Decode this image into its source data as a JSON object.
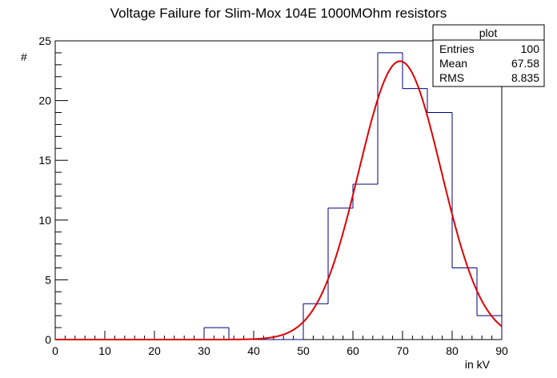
{
  "chart_data": {
    "type": "histogram",
    "title": "Voltage Failure for Slim-Mox 104E 1000MOhm resistors",
    "xlabel": "in kV",
    "ylabel": "#",
    "xlim": [
      0,
      90
    ],
    "ylim": [
      0,
      25
    ],
    "xticks": [
      0,
      10,
      20,
      30,
      40,
      50,
      60,
      70,
      80,
      90
    ],
    "yticks": [
      0,
      5,
      10,
      15,
      20,
      25
    ],
    "bin_width": 5,
    "bins": [
      {
        "x_low": 0,
        "x_high": 5,
        "count": 0
      },
      {
        "x_low": 5,
        "x_high": 10,
        "count": 0
      },
      {
        "x_low": 10,
        "x_high": 15,
        "count": 0
      },
      {
        "x_low": 15,
        "x_high": 20,
        "count": 0
      },
      {
        "x_low": 20,
        "x_high": 25,
        "count": 0
      },
      {
        "x_low": 25,
        "x_high": 30,
        "count": 0
      },
      {
        "x_low": 30,
        "x_high": 35,
        "count": 1
      },
      {
        "x_low": 35,
        "x_high": 40,
        "count": 0
      },
      {
        "x_low": 40,
        "x_high": 45,
        "count": 0
      },
      {
        "x_low": 45,
        "x_high": 50,
        "count": 0
      },
      {
        "x_low": 50,
        "x_high": 55,
        "count": 3
      },
      {
        "x_low": 55,
        "x_high": 60,
        "count": 11
      },
      {
        "x_low": 60,
        "x_high": 65,
        "count": 13
      },
      {
        "x_low": 65,
        "x_high": 70,
        "count": 24
      },
      {
        "x_low": 70,
        "x_high": 75,
        "count": 21
      },
      {
        "x_low": 75,
        "x_high": 80,
        "count": 19
      },
      {
        "x_low": 80,
        "x_high": 85,
        "count": 6
      },
      {
        "x_low": 85,
        "x_high": 90,
        "count": 2
      }
    ],
    "fit": {
      "type": "gaussian",
      "amplitude": 23.3,
      "mean": 69.5,
      "sigma": 8.3,
      "color": "#e00000"
    },
    "histogram_color": "#000080",
    "stats_box": {
      "name": "plot",
      "rows": [
        {
          "label": "Entries",
          "value": "100"
        },
        {
          "label": "Mean",
          "value": "67.58"
        },
        {
          "label": "RMS",
          "value": "8.835"
        }
      ]
    }
  }
}
